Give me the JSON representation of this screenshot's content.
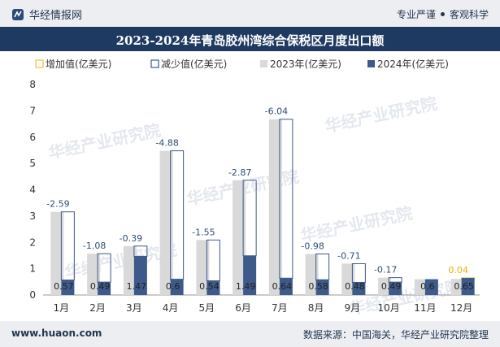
{
  "header": {
    "brand": "华经情报网",
    "slogan_left": "专业严谨",
    "slogan_right": "客观科学",
    "brand_icon": "huajing-logo-icon"
  },
  "footer": {
    "site": "www.huaon.com",
    "source": "数据来源：中国海关，华经产业研究院整理"
  },
  "watermark": "华经产业研究院",
  "chart_data": {
    "type": "bar",
    "title": "2023-2024年青岛胶州湾综合保税区月度出口额",
    "categories": [
      "1月",
      "2月",
      "3月",
      "4月",
      "5月",
      "6月",
      "7月",
      "8月",
      "9月",
      "10月",
      "11月",
      "12月"
    ],
    "ylim": [
      0,
      8
    ],
    "yticks": [
      0,
      1,
      2,
      3,
      4,
      5,
      6,
      7,
      8
    ],
    "legend": {
      "position": "top",
      "entries": [
        "增加值(亿美元)",
        "减少值(亿美元)",
        "2023年(亿美元)",
        "2024年(亿美元)"
      ]
    },
    "series": [
      {
        "name": "2023年(亿美元)",
        "color": "#d9d9d9",
        "values": [
          3.16,
          1.57,
          1.86,
          5.48,
          2.09,
          4.36,
          6.68,
          1.56,
          1.19,
          0.66,
          0.6,
          0.61
        ]
      },
      {
        "name": "2024年(亿美元)",
        "color": "#3d5a8a",
        "values": [
          0.57,
          0.49,
          1.47,
          0.6,
          0.54,
          1.49,
          0.64,
          0.58,
          0.48,
          0.49,
          0.6,
          0.65
        ]
      }
    ],
    "changes": [
      -2.59,
      -1.08,
      -0.39,
      -4.88,
      -1.55,
      -2.87,
      -6.04,
      -0.98,
      -0.71,
      -0.17,
      null,
      0.04
    ],
    "change_labels": [
      "-2.59",
      "-1.08",
      "-0.39",
      "-4.88",
      "-1.55",
      "-2.87",
      "-6.04",
      "-0.98",
      "-0.71",
      "-0.17",
      "",
      "0.04"
    ],
    "value_labels_2024": [
      "0.57",
      "0.49",
      "1.47",
      "0.6",
      "0.54",
      "1.49",
      "0.64",
      "0.58",
      "0.48",
      "0.49",
      "0.6",
      "0.65"
    ],
    "colors": {
      "increase": "#f2c230",
      "decrease": "#3d5a8a",
      "decrease_label": "#2e4d74",
      "increase_label": "#e8b400"
    }
  }
}
